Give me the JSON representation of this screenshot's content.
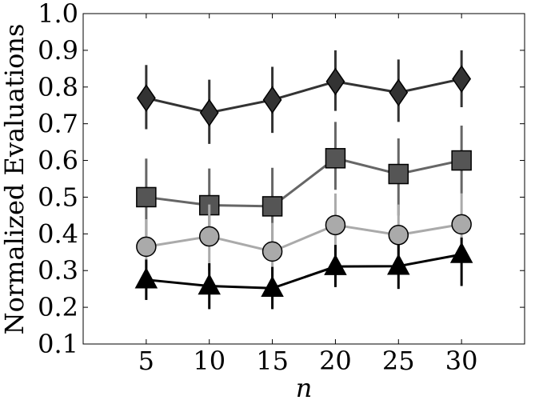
{
  "chart_data": {
    "type": "line",
    "xlabel": "n",
    "ylabel": "Normalized Evaluations",
    "x": [
      5,
      10,
      15,
      20,
      25,
      30
    ],
    "xlim": [
      0,
      35
    ],
    "ylim": [
      0.1,
      1.0
    ],
    "xticks": [
      "5",
      "10",
      "15",
      "20",
      "25",
      "30"
    ],
    "yticks": [
      "0.1",
      "0.2",
      "0.3",
      "0.4",
      "0.5",
      "0.6",
      "0.7",
      "0.8",
      "0.9",
      "1.0"
    ],
    "grid": false,
    "series": [
      {
        "marker": "diamond",
        "color": "#333333",
        "line_color": "#333333",
        "values": [
          0.77,
          0.73,
          0.765,
          0.815,
          0.785,
          0.822
        ],
        "err_low": [
          0.685,
          0.645,
          0.675,
          0.735,
          0.705,
          0.745
        ],
        "err_high": [
          0.86,
          0.82,
          0.855,
          0.9,
          0.875,
          0.9
        ]
      },
      {
        "marker": "square",
        "color": "#555555",
        "line_color": "#666666",
        "values": [
          0.5,
          0.478,
          0.475,
          0.606,
          0.563,
          0.6
        ],
        "err_low": [
          0.395,
          0.375,
          0.36,
          0.52,
          0.45,
          0.51
        ],
        "err_high": [
          0.605,
          0.578,
          0.58,
          0.705,
          0.66,
          0.695
        ]
      },
      {
        "marker": "circle",
        "color": "#aaaaaa",
        "line_color": "#aaaaaa",
        "values": [
          0.365,
          0.393,
          0.352,
          0.424,
          0.397,
          0.426
        ],
        "err_low": [
          0.29,
          0.3,
          0.27,
          0.34,
          0.31,
          0.34
        ],
        "err_high": [
          0.44,
          0.48,
          0.43,
          0.51,
          0.48,
          0.51
        ]
      },
      {
        "marker": "triangle",
        "color": "#000000",
        "line_color": "#000000",
        "values": [
          0.275,
          0.258,
          0.252,
          0.311,
          0.312,
          0.344
        ],
        "err_low": [
          0.22,
          0.195,
          0.195,
          0.255,
          0.25,
          0.258
        ],
        "err_high": [
          0.33,
          0.32,
          0.31,
          0.37,
          0.37,
          0.39
        ]
      }
    ]
  }
}
